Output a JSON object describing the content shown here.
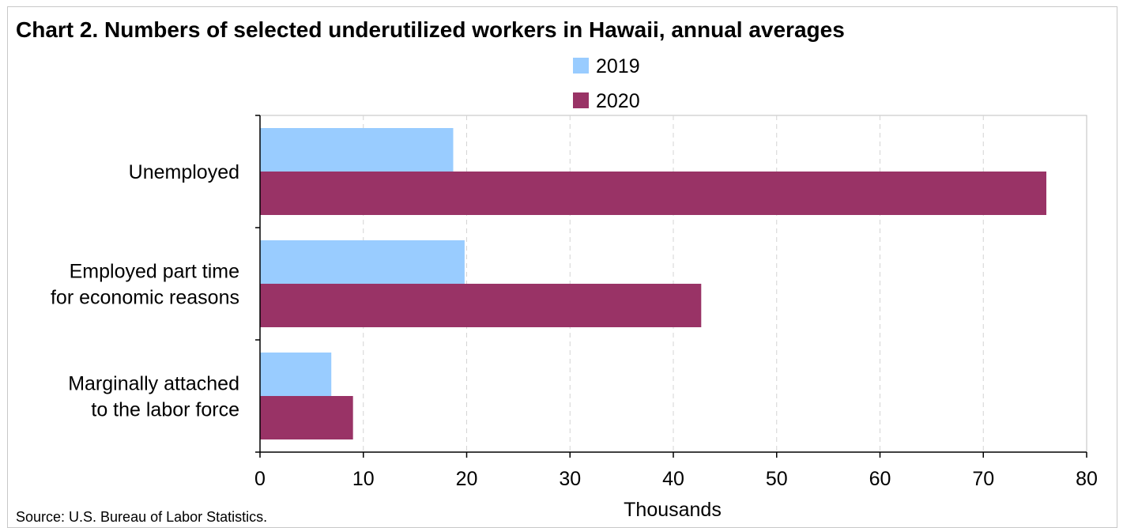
{
  "chart_data": {
    "type": "bar",
    "orientation": "horizontal",
    "title": "Chart 2. Numbers of selected underutilized workers in Hawaii, annual averages",
    "categories": [
      [
        "Unemployed"
      ],
      [
        "Employed part time",
        "for economic reasons"
      ],
      [
        "Marginally attached",
        "to the labor force"
      ]
    ],
    "series": [
      {
        "name": "2019",
        "color": "#99ccff",
        "values": [
          18.7,
          19.8,
          6.9
        ]
      },
      {
        "name": "2020",
        "color": "#993366",
        "values": [
          76.1,
          42.7,
          9.0
        ]
      }
    ],
    "xlabel": "Thousands",
    "xlim": [
      0,
      80
    ],
    "xticks": [
      "0",
      "10",
      "20",
      "30",
      "40",
      "50",
      "60",
      "70",
      "80"
    ],
    "grid": "vertical dashed",
    "legend": "top-center",
    "source": "Source: U.S. Bureau of Labor Statistics."
  }
}
